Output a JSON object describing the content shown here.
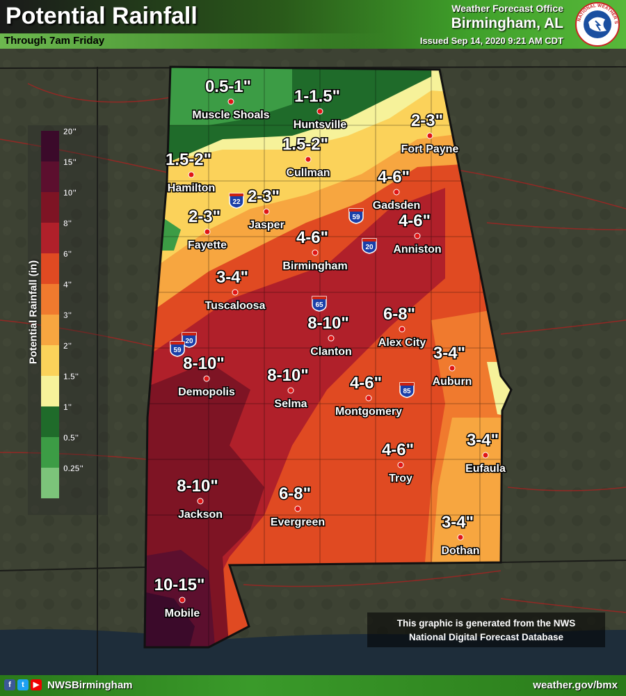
{
  "header": {
    "title": "Potential Rainfall",
    "subtitle": "Through 7am Friday",
    "office_line1": "Weather Forecast Office",
    "office_line2": "Birmingham, AL",
    "issued": "Issued Sep 14, 2020 9:21 AM CDT",
    "logo_text": "NATIONAL WEATHER SERVICE"
  },
  "legend": {
    "title": "Potential Rainfall (in)",
    "bins": [
      {
        "label": "20\"",
        "value": 20,
        "color": "#3b0a2a"
      },
      {
        "label": "15\"",
        "value": 15,
        "color": "#5c0f2e"
      },
      {
        "label": "10\"",
        "value": 10,
        "color": "#7e1424"
      },
      {
        "label": "8\"",
        "value": 8,
        "color": "#b0202a"
      },
      {
        "label": "6\"",
        "value": 6,
        "color": "#e04a22"
      },
      {
        "label": "4\"",
        "value": 4,
        "color": "#f07a2e"
      },
      {
        "label": "3\"",
        "value": 3,
        "color": "#f7a640"
      },
      {
        "label": "2\"",
        "value": 2,
        "color": "#fbd25a"
      },
      {
        "label": "1.5\"",
        "value": 1.5,
        "color": "#f6f29a"
      },
      {
        "label": "1\"",
        "value": 1,
        "color": "#1f6b2a"
      },
      {
        "label": "0.5\"",
        "value": 0.5,
        "color": "#3c9c45"
      },
      {
        "label": "0.25\"",
        "value": 0.25,
        "color": "#7cc47a"
      }
    ]
  },
  "cities": [
    {
      "name": "Muscle Shoals",
      "amount": "0.5-1\""
    },
    {
      "name": "Huntsville",
      "amount": "1-1.5\""
    },
    {
      "name": "Fort Payne",
      "amount": "2-3\""
    },
    {
      "name": "Cullman",
      "amount": "1.5-2\""
    },
    {
      "name": "Hamilton",
      "amount": "1.5-2\""
    },
    {
      "name": "Jasper",
      "amount": "2-3\""
    },
    {
      "name": "Gadsden",
      "amount": "4-6\""
    },
    {
      "name": "Fayette",
      "amount": "2-3\""
    },
    {
      "name": "Anniston",
      "amount": "4-6\""
    },
    {
      "name": "Birmingham",
      "amount": "4-6\""
    },
    {
      "name": "Tuscaloosa",
      "amount": "3-4\""
    },
    {
      "name": "Clanton",
      "amount": "8-10\""
    },
    {
      "name": "Alex City",
      "amount": "6-8\""
    },
    {
      "name": "Auburn",
      "amount": "3-4\""
    },
    {
      "name": "Demopolis",
      "amount": "8-10\""
    },
    {
      "name": "Selma",
      "amount": "8-10\""
    },
    {
      "name": "Montgomery",
      "amount": "4-6\""
    },
    {
      "name": "Eufaula",
      "amount": "3-4\""
    },
    {
      "name": "Troy",
      "amount": "4-6\""
    },
    {
      "name": "Jackson",
      "amount": "8-10\""
    },
    {
      "name": "Evergreen",
      "amount": "6-8\""
    },
    {
      "name": "Dothan",
      "amount": "3-4\""
    },
    {
      "name": "Mobile",
      "amount": "10-15\""
    }
  ],
  "interstates": [
    "22",
    "59",
    "20",
    "65",
    "20",
    "59",
    "85"
  ],
  "note": {
    "line1": "This graphic is generated from the NWS",
    "line2": "National Digital Forecast Database"
  },
  "footer": {
    "handle": "NWSBirmingham",
    "website": "weather.gov/bmx",
    "social_icons": [
      "facebook-icon",
      "twitter-icon",
      "youtube-icon"
    ]
  }
}
